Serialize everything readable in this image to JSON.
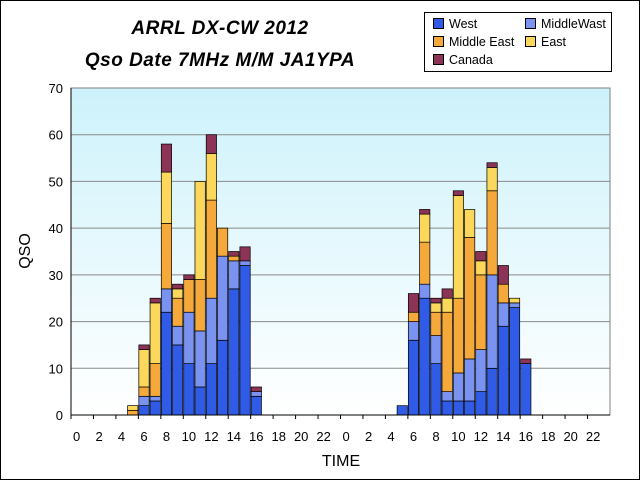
{
  "chart_data": {
    "type": "bar",
    "stacked": true,
    "title": "ARRL DX-CW 2012",
    "subtitle": "Qso Date 7MHz M/M JA1YPA",
    "xlabel": "TIME",
    "ylabel": "QSO",
    "ylim": [
      0,
      70
    ],
    "yticks": [
      0,
      10,
      20,
      30,
      40,
      50,
      60,
      70
    ],
    "grid": true,
    "legend_position": "top-right",
    "categories": [
      "0",
      "1",
      "2",
      "3",
      "4",
      "5",
      "6",
      "7",
      "8",
      "9",
      "10",
      "11",
      "12",
      "13",
      "14",
      "15",
      "16",
      "17",
      "18",
      "19",
      "20",
      "21",
      "22",
      "23",
      "0",
      "1",
      "2",
      "3",
      "4",
      "5",
      "6",
      "7",
      "8",
      "9",
      "10",
      "11",
      "12",
      "13",
      "14",
      "15",
      "16",
      "17",
      "18",
      "19",
      "20",
      "21",
      "22",
      "23"
    ],
    "tick_labels": [
      "0",
      "2",
      "4",
      "6",
      "8",
      "10",
      "12",
      "14",
      "16",
      "18",
      "20",
      "22",
      "0",
      "2",
      "4",
      "6",
      "8",
      "10",
      "12",
      "14",
      "16",
      "18",
      "20",
      "22"
    ],
    "series": [
      {
        "name": "West",
        "color": "#2f5be6",
        "values": [
          0,
          0,
          0,
          0,
          0,
          0,
          2,
          3,
          22,
          15,
          11,
          6,
          11,
          16,
          27,
          32,
          4,
          0,
          0,
          0,
          0,
          0,
          0,
          0,
          0,
          0,
          0,
          0,
          0,
          2,
          16,
          25,
          11,
          3,
          3,
          3,
          5,
          10,
          19,
          23,
          11,
          0,
          0,
          0,
          0,
          0,
          0,
          0
        ]
      },
      {
        "name": "MiddleWast",
        "color": "#7b93f0",
        "values": [
          0,
          0,
          0,
          0,
          0,
          0,
          2,
          1,
          5,
          4,
          11,
          12,
          14,
          18,
          6,
          1,
          1,
          0,
          0,
          0,
          0,
          0,
          0,
          0,
          0,
          0,
          0,
          0,
          0,
          0,
          4,
          3,
          6,
          2,
          6,
          9,
          9,
          20,
          5,
          1,
          0,
          0,
          0,
          0,
          0,
          0,
          0,
          0
        ]
      },
      {
        "name": "Middle East",
        "color": "#f5a93a",
        "values": [
          0,
          0,
          0,
          0,
          0,
          1,
          2,
          7,
          14,
          6,
          7,
          11,
          21,
          6,
          1,
          0,
          0,
          0,
          0,
          0,
          0,
          0,
          0,
          0,
          0,
          0,
          0,
          0,
          0,
          0,
          2,
          9,
          5,
          17,
          16,
          26,
          16,
          18,
          4,
          0,
          0,
          0,
          0,
          0,
          0,
          0,
          0,
          0
        ]
      },
      {
        "name": "East",
        "color": "#fbd85b",
        "values": [
          0,
          0,
          0,
          0,
          0,
          1,
          8,
          13,
          11,
          2,
          0,
          21,
          10,
          0,
          0,
          0,
          0,
          0,
          0,
          0,
          0,
          0,
          0,
          0,
          0,
          0,
          0,
          0,
          0,
          0,
          0,
          6,
          2,
          3,
          22,
          6,
          3,
          5,
          0,
          1,
          0,
          0,
          0,
          0,
          0,
          0,
          0,
          0
        ]
      },
      {
        "name": "Canada",
        "color": "#8c3456",
        "values": [
          0,
          0,
          0,
          0,
          0,
          0,
          1,
          1,
          6,
          1,
          1,
          0,
          4,
          0,
          1,
          3,
          1,
          0,
          0,
          0,
          0,
          0,
          0,
          0,
          0,
          0,
          0,
          0,
          0,
          0,
          4,
          1,
          1,
          2,
          1,
          0,
          2,
          1,
          4,
          0,
          1,
          0,
          0,
          0,
          0,
          0,
          0,
          0
        ]
      }
    ]
  },
  "legend": {
    "items": [
      {
        "label": "West",
        "color": "#2f5be6"
      },
      {
        "label": "MiddleWast",
        "color": "#7b93f0"
      },
      {
        "label": "Middle East",
        "color": "#f5a93a"
      },
      {
        "label": "East",
        "color": "#fbd85b"
      },
      {
        "label": "Canada",
        "color": "#8c3456"
      }
    ]
  }
}
